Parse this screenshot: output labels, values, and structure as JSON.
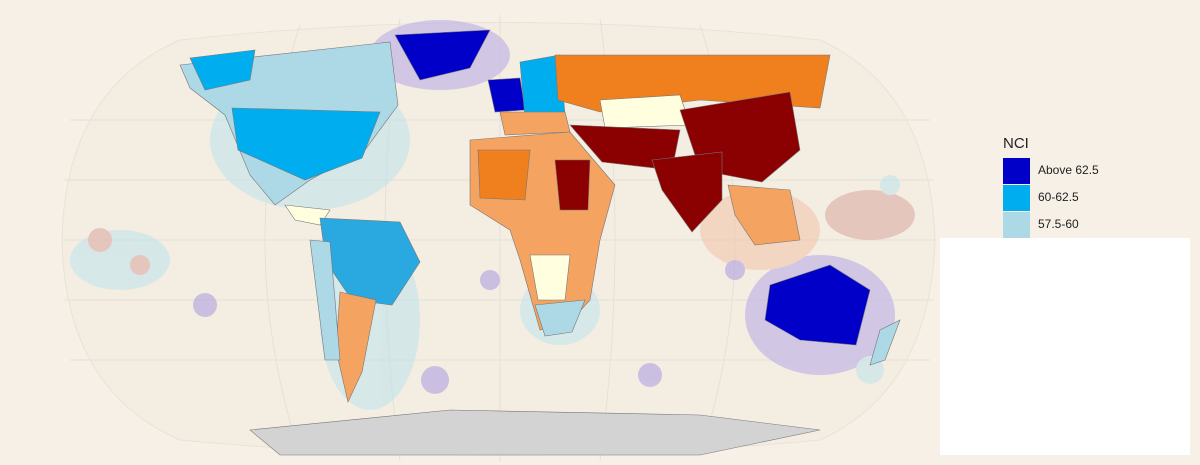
{
  "legend": {
    "title": "NCI",
    "items": [
      {
        "label": "Above 62.5",
        "color": "#0000c8"
      },
      {
        "label": "60-62.5",
        "color": "#00aeef"
      },
      {
        "label": "57.5-60",
        "color": "#add8e6"
      }
    ]
  }
}
